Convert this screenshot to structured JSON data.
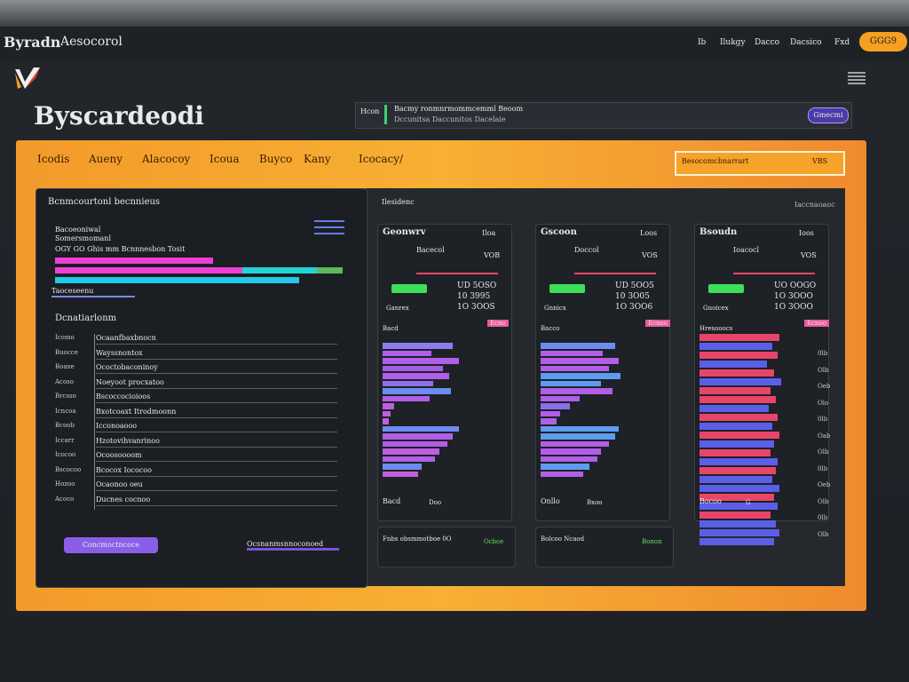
{
  "header": {
    "brand": "Byradn",
    "brand_sub": "Aesocorol",
    "nav": [
      "Ib",
      "Ilukgy",
      "Dacco",
      "Dacsico",
      "Fxd"
    ],
    "button": "GGG9"
  },
  "hero": {
    "title": "Byscardeodi",
    "search_label": "Hcon",
    "search_lines": [
      "Bacmy ronmnrmommcemml Beoom",
      "Dccunitsa Daccunitos Dacelaie"
    ],
    "search_button": "Gmecmi"
  },
  "subnav": {
    "items": [
      "Icodis",
      "Aueny",
      "Alacocoy",
      "Icoua",
      "Buyco",
      "Kany",
      "Icocacy/"
    ],
    "search_text": "Besocomcbnarrart",
    "search_hint": "VBS"
  },
  "overview": {
    "title": "Ilesidenc",
    "subtitle": "Iaccnaoaoc"
  },
  "left_panel": {
    "title": "Bcnmcourtonl becnnieus",
    "lines": [
      "Bacoeoniwal",
      "Somersmomanl",
      "OGY GO Ghis mm Bcnnnesbon Tosit"
    ],
    "bars": [
      {
        "segments": [
          {
            "color": "#f03fd6",
            "value": 55
          }
        ]
      },
      {
        "segments": [
          {
            "color": "#f03fd6",
            "value": 65
          },
          {
            "color": "#22d3d6",
            "value": 26
          },
          {
            "color": "#5fb85a",
            "value": 9
          }
        ]
      },
      {
        "segments": [
          {
            "color": "#22c9e6",
            "value": 85
          }
        ]
      }
    ],
    "caption": "Taoceseenu",
    "list_title": "Dcnatiarlonm",
    "rows": [
      {
        "label": "Icomo",
        "text": "Ocaanfbaxbnocn"
      },
      {
        "label": "Buocce",
        "text": "Wayssnontox"
      },
      {
        "label": "Boaxe",
        "text": "Ococtobaconinoy"
      },
      {
        "label": "Acoso",
        "text": "Noeyoot procxatoo"
      },
      {
        "label": "Brcsso",
        "text": "Bscoccocioioos"
      },
      {
        "label": "Icncoa",
        "text": "Bxotcoaxt Itrodmoonn"
      },
      {
        "label": "Bcoob",
        "text": "Icconoaooo"
      },
      {
        "label": "Iccarr",
        "text": "Hzotovihvanrinoo"
      },
      {
        "label": "Icocoo",
        "text": "Ocoosoooom"
      },
      {
        "label": "Bscocoo",
        "text": "Bcocox Iococoo"
      },
      {
        "label": "Hozoo",
        "text": "Ocaonoo oeu"
      },
      {
        "label": "Acoco",
        "text": "Ducnes cocnoo"
      }
    ],
    "button": "Concmoctncoce",
    "footer": "Ocsnanmsnnoconoed"
  },
  "cards": [
    {
      "title": "Geonwrv",
      "badge": "Iloa",
      "sub_label": "Bacecol",
      "sub_value": "VOB",
      "stat_label": "Ganrex",
      "stats": [
        "UD 5OSO",
        "10 3995",
        "1O 3OOS"
      ],
      "tag": "Ecno",
      "chart_label": "Bacd",
      "bars": {
        "values": [
          72,
          50,
          78,
          62,
          68,
          52,
          70,
          48,
          12,
          8,
          6,
          78,
          72,
          66,
          58,
          54,
          40,
          36
        ],
        "colors": [
          "#8c7cf0",
          "#b15ee8",
          "#b15ee8",
          "#a35de8",
          "#b15ee8",
          "#8b6fe8",
          "#6e8cf0",
          "#b15ee8",
          "#c05ee0",
          "#c05ee0",
          "#c05ee0",
          "#6e8cf0",
          "#b15ee8",
          "#b15ee8",
          "#c05ee0",
          "#b15ee8",
          "#6e8cf0",
          "#c05ee0"
        ]
      },
      "footer_left": "Bacd",
      "footer_right": "Doo"
    },
    {
      "title": "Gscoon",
      "badge": "Loos",
      "sub_label": "Doccol",
      "sub_value": "VOS",
      "stat_label": "Gnnicx",
      "stats": [
        "UD 5OO5",
        "10 3O05",
        "1O 3OO6"
      ],
      "tag": "Ecnoo",
      "chart_label": "Bacco",
      "bars": {
        "values": [
          76,
          64,
          80,
          70,
          82,
          62,
          74,
          40,
          30,
          20,
          16,
          80,
          76,
          70,
          62,
          58,
          50,
          44
        ],
        "colors": [
          "#6e8cf0",
          "#b15ee8",
          "#b15ee8",
          "#b15ee8",
          "#5e9cf0",
          "#5e9cf0",
          "#b15ee8",
          "#b15ee8",
          "#8b6fe8",
          "#b15ee8",
          "#b15ee8",
          "#5e9cf0",
          "#5e9cf0",
          "#b15ee8",
          "#b15ee8",
          "#b15ee8",
          "#5e9cf0",
          "#b15ee8"
        ]
      },
      "footer_left": "Onllo",
      "footer_right": "Bxoo"
    },
    {
      "title": "Bsoudn",
      "badge": "Ioos",
      "sub_label": "Ioacocl",
      "sub_value": "VOS",
      "stat_label": "Gnoicex",
      "stats": [
        "UO OOGO",
        "1O 3OOO",
        "1O 3OOO"
      ],
      "tag": "Ecnoo",
      "chart_label": "Hresooocs",
      "bars": {
        "values": [
          90,
          82,
          88,
          76,
          84,
          92,
          80,
          86,
          78,
          88,
          82,
          90,
          84,
          80,
          88,
          86,
          82,
          90,
          84,
          88,
          80,
          86,
          90,
          84
        ],
        "colors": [
          "#e8456a",
          "#5b5fe8",
          "#e8456a",
          "#5b5fe8",
          "#e8456a",
          "#5b5fe8",
          "#e8456a",
          "#e8456a",
          "#5b5fe8",
          "#e8456a",
          "#5b5fe8",
          "#e8456a",
          "#5b5fe8",
          "#e8456a",
          "#5b5fe8",
          "#e8456a",
          "#5b5fe8",
          "#5b5fe8",
          "#e8456a",
          "#5b5fe8",
          "#e8456a",
          "#5b5fe8",
          "#5b5fe8",
          "#5b5fe8"
        ]
      },
      "footer_left": "Bocoo",
      "footer_right": "G"
    }
  ],
  "side_labels": [
    "0lb",
    "Olb",
    "Oeb",
    "Olo",
    "0lb",
    "Oab",
    "Olb",
    "0lb",
    "Oeb",
    "Olb",
    "0lb",
    "Olb"
  ],
  "bottom_cards": [
    {
      "title": "Fnbs obsmmotboe 0O",
      "note": "Ocbce"
    },
    {
      "title": "Bolcoo Ncaod",
      "note": "Bonon"
    }
  ]
}
